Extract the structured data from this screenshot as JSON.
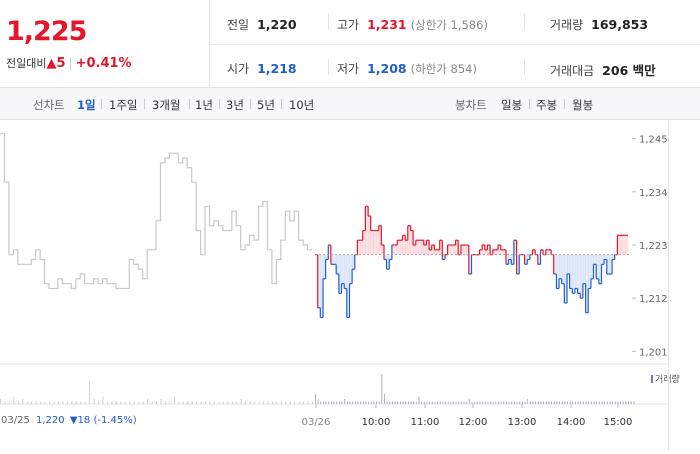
{
  "quote": {
    "price": "1,225",
    "change_label": "전일대비",
    "change_arrow": "▲",
    "change_value": "5",
    "change_pct": "+0.41%"
  },
  "stats": {
    "prev_close_label": "전일",
    "prev_close": "1,220",
    "high_label": "고가",
    "high": "1,231",
    "upper_limit": "(상한가 1,586)",
    "volume_label": "거래량",
    "volume": "169,853",
    "open_label": "시가",
    "open": "1,218",
    "low_label": "저가",
    "low": "1,208",
    "lower_limit": "(하한가 854)",
    "amount_label": "거래대금",
    "amount": "206 백만"
  },
  "tabs": {
    "line_label": "선차트",
    "line_tabs": [
      "1일",
      "1주일",
      "3개월",
      "1년",
      "3년",
      "5년",
      "10년"
    ],
    "active_line_tab": "1일",
    "candle_label": "봉차트",
    "candle_tabs": [
      "일봉",
      "주봉",
      "월봉"
    ]
  },
  "chart_labels": {
    "volume_legend": "거래량",
    "prev_day_info_date": "03/25",
    "prev_day_info_price": "1,220",
    "prev_day_info_change": "▼18 (-1.45%)"
  },
  "colors": {
    "up": "#e4162b",
    "down": "#1f5ecf",
    "prev_line": "#c8c8c8",
    "volume": "#b0b0c8"
  },
  "chart_data": {
    "type": "line",
    "ylim": [
      1199,
      1247
    ],
    "y_ticks": [
      1245,
      1234,
      1223,
      1212,
      1201
    ],
    "reference_price": 1221,
    "x_tick_labels": [
      "03/25",
      "03/26",
      "10:00",
      "11:00",
      "12:00",
      "13:00",
      "14:00",
      "15:00"
    ],
    "prev_day_series": {
      "name": "03/25",
      "values": [
        1246,
        1236,
        1221,
        1222,
        1219,
        1219,
        1219,
        1220,
        1222,
        1220,
        1215,
        1214,
        1214,
        1216,
        1215,
        1215,
        1214,
        1216,
        1217,
        1215,
        1215,
        1216,
        1215,
        1216,
        1215,
        1215,
        1214,
        1214,
        1214,
        1220,
        1219,
        1218,
        1216,
        1222,
        1222,
        1228,
        1240,
        1241,
        1242,
        1242,
        1240,
        1241,
        1239,
        1236,
        1226,
        1221,
        1231,
        1227,
        1228,
        1227,
        1226,
        1226,
        1230,
        1227,
        1222,
        1223,
        1225,
        1224,
        1231,
        1232,
        1222,
        1215,
        1220,
        1224,
        1230,
        1228,
        1230,
        1224,
        1223,
        1222,
        1222
      ]
    },
    "today_series": {
      "name": "03/26",
      "values": [
        1221,
        1210,
        1208,
        1216,
        1220,
        1223,
        1219,
        1219,
        1217,
        1213,
        1215,
        1214,
        1208,
        1215,
        1218,
        1221,
        1224,
        1224,
        1226,
        1231,
        1229,
        1226,
        1226,
        1226,
        1227,
        1223,
        1220,
        1218,
        1220,
        1223,
        1223,
        1224,
        1224,
        1225,
        1224,
        1227,
        1226,
        1223,
        1224,
        1224,
        1224,
        1223,
        1224,
        1222,
        1223,
        1222,
        1222,
        1224,
        1220,
        1221,
        1223,
        1223,
        1223,
        1224,
        1221,
        1223,
        1223,
        1223,
        1217,
        1221,
        1221,
        1221,
        1222,
        1223,
        1222,
        1223,
        1221,
        1222,
        1222,
        1223,
        1222,
        1222,
        1219,
        1220,
        1219,
        1224,
        1217,
        1221,
        1221,
        1219,
        1220,
        1221,
        1222,
        1221,
        1219,
        1222,
        1221,
        1222,
        1222,
        1221,
        1217,
        1214,
        1216,
        1215,
        1211,
        1217,
        1214,
        1213,
        1214,
        1213,
        1212,
        1215,
        1209,
        1214,
        1216,
        1219,
        1216,
        1215,
        1219,
        1220,
        1217,
        1217,
        1220,
        1221,
        1225,
        1225,
        1225,
        1225,
        1225
      ]
    },
    "volume_prev": [
      2,
      1,
      1,
      3,
      1,
      2,
      1,
      1,
      1,
      1,
      1,
      1,
      1,
      1,
      1,
      1,
      1,
      1,
      1,
      1,
      9,
      2,
      1,
      3,
      1,
      1,
      1,
      1,
      1,
      1,
      1,
      1,
      1,
      2,
      1,
      1,
      2,
      1,
      1,
      3,
      1,
      1,
      1,
      1,
      1,
      1,
      1,
      1,
      1,
      1,
      1,
      1,
      1,
      1,
      2,
      1,
      1,
      1,
      1,
      1,
      1,
      1,
      1,
      1,
      1,
      1,
      1,
      1,
      1,
      1,
      1
    ],
    "volume_today": [
      4,
      2,
      1,
      1,
      1,
      1,
      1,
      1,
      1,
      1,
      1,
      2,
      1,
      1,
      1,
      1,
      1,
      1,
      1,
      1,
      1,
      1,
      1,
      1,
      1,
      12,
      4,
      1,
      1,
      1,
      1,
      1,
      1,
      1,
      1,
      1,
      1,
      1,
      1,
      3,
      1,
      1,
      1,
      1,
      1,
      1,
      1,
      1,
      1,
      1,
      1,
      1,
      1,
      1,
      1,
      1,
      1,
      1,
      2,
      1,
      1,
      1,
      1,
      1,
      1,
      1,
      1,
      1,
      1,
      1,
      1,
      1,
      1,
      1,
      1,
      1,
      1,
      1,
      1,
      1,
      2,
      1,
      1,
      1,
      1,
      1,
      1,
      1,
      1,
      1,
      1,
      1,
      1,
      1,
      1,
      1,
      1,
      1,
      1,
      1,
      1,
      1,
      1,
      1,
      1,
      1,
      1,
      1,
      1,
      1,
      1,
      1,
      1,
      1,
      1,
      1,
      1,
      1,
      1,
      1,
      1
    ]
  }
}
